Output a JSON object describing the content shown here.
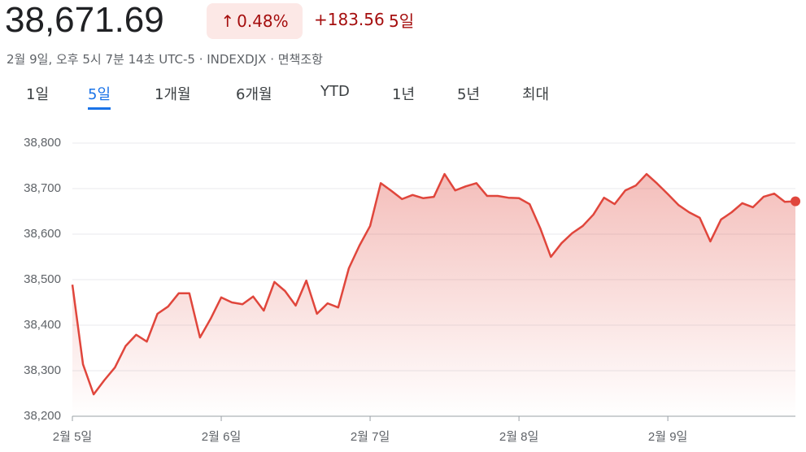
{
  "header": {
    "price": "38,671.69",
    "change_pct": "0.48%",
    "change": "+183.56",
    "period": "5일",
    "meta": "2월 9일, 오후 5시 7분 14초 UTC-5 · INDEXDJX · 면책조항"
  },
  "tabs": [
    "1일",
    "5일",
    "1개월",
    "6개월",
    "YTD",
    "1년",
    "5년",
    "최대"
  ],
  "chart_data": {
    "type": "area-line",
    "color": "#e0463c",
    "grid": true,
    "x": [
      0,
      1,
      2,
      3,
      4,
      5,
      6,
      7,
      8,
      9,
      10,
      11,
      12,
      13,
      14,
      15,
      16,
      17,
      18,
      19,
      20,
      21,
      22,
      23,
      24,
      25,
      26,
      27,
      28,
      29,
      30,
      31,
      32,
      33,
      34,
      35,
      36,
      37,
      38,
      39,
      40,
      41,
      42,
      43,
      44,
      45,
      46,
      47,
      48,
      49,
      50,
      51,
      52,
      53,
      54,
      55,
      56,
      57,
      58,
      59,
      60,
      61,
      62,
      63,
      64,
      65,
      66,
      67,
      68
    ],
    "values": [
      38489,
      38314,
      38248,
      38279,
      38307,
      38354,
      38379,
      38364,
      38425,
      38441,
      38470,
      38470,
      38373,
      38414,
      38461,
      38450,
      38446,
      38463,
      38432,
      38495,
      38475,
      38443,
      38498,
      38425,
      38448,
      38439,
      38525,
      38575,
      38618,
      38712,
      38695,
      38677,
      38686,
      38679,
      38682,
      38732,
      38696,
      38705,
      38712,
      38684,
      38684,
      38680,
      38679,
      38666,
      38613,
      38550,
      38580,
      38602,
      38618,
      38643,
      38680,
      38666,
      38696,
      38707,
      38732,
      38711,
      38688,
      38664,
      38648,
      38636,
      38584,
      38632,
      38648,
      38668,
      38659,
      38682,
      38689,
      38671,
      38672
    ],
    "xlim": [
      0,
      68
    ],
    "xticks": [
      {
        "value": 0,
        "label": "2월 5일"
      },
      {
        "value": 14,
        "label": "2월 6일"
      },
      {
        "value": 28,
        "label": "2월 7일"
      },
      {
        "value": 42,
        "label": "2월 8일"
      },
      {
        "value": 56,
        "label": "2월 9일"
      }
    ],
    "ylim": [
      38200,
      38800
    ],
    "yticks": [
      {
        "value": 38200,
        "label": "38,200"
      },
      {
        "value": 38300,
        "label": "38,300"
      },
      {
        "value": 38400,
        "label": "38,400"
      },
      {
        "value": 38500,
        "label": "38,500"
      },
      {
        "value": 38600,
        "label": "38,600"
      },
      {
        "value": 38700,
        "label": "38,700"
      },
      {
        "value": 38800,
        "label": "38,800"
      }
    ]
  }
}
